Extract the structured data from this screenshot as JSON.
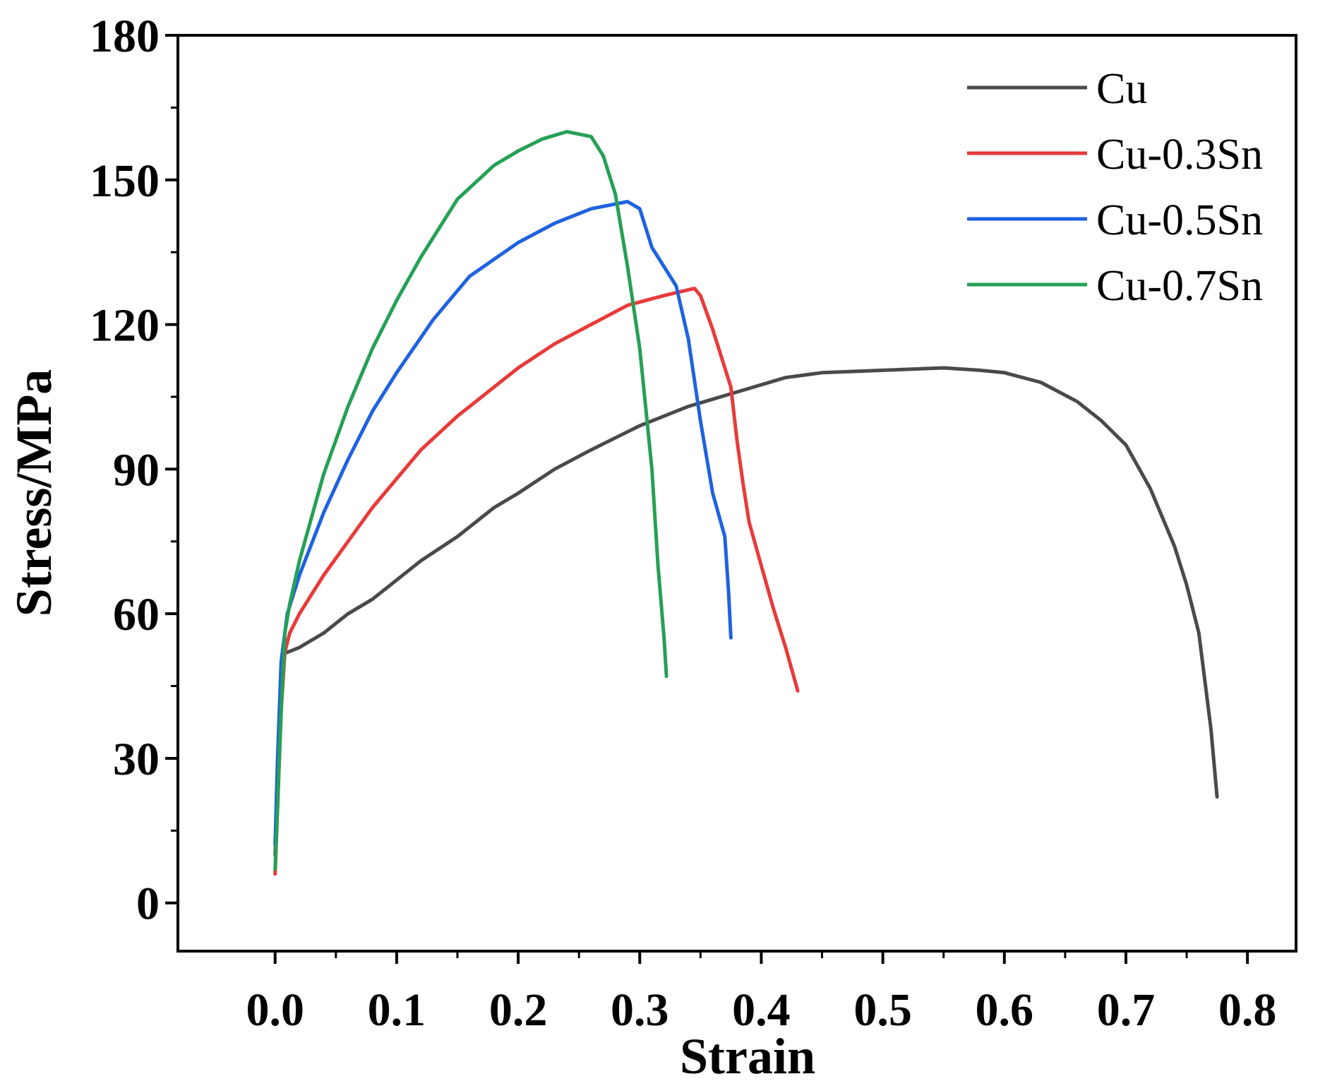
{
  "chart_data": {
    "type": "line",
    "title": "",
    "xlabel": "Strain",
    "ylabel": "Stress/MPa",
    "xlim": [
      -0.08,
      0.84
    ],
    "ylim": [
      -10,
      180
    ],
    "xticks": [
      0.0,
      0.1,
      0.2,
      0.3,
      0.4,
      0.5,
      0.6,
      0.7,
      0.8
    ],
    "xtick_labels": [
      "0.0",
      "0.1",
      "0.2",
      "0.3",
      "0.4",
      "0.5",
      "0.6",
      "0.7",
      "0.8"
    ],
    "yticks": [
      0,
      30,
      60,
      90,
      120,
      150,
      180
    ],
    "ytick_labels": [
      "0",
      "30",
      "60",
      "90",
      "120",
      "150",
      "180"
    ],
    "grid": false,
    "legend_position": "top-right",
    "series": [
      {
        "name": "Cu",
        "color": "#4a4a4a",
        "x": [
          0.0,
          0.002,
          0.004,
          0.006,
          0.008,
          0.01,
          0.02,
          0.04,
          0.06,
          0.08,
          0.1,
          0.12,
          0.15,
          0.18,
          0.2,
          0.23,
          0.26,
          0.3,
          0.34,
          0.38,
          0.42,
          0.45,
          0.5,
          0.55,
          0.58,
          0.6,
          0.63,
          0.66,
          0.68,
          0.7,
          0.72,
          0.74,
          0.75,
          0.76,
          0.77,
          0.775
        ],
        "values": [
          10,
          20,
          35,
          48,
          52,
          52,
          53,
          56,
          60,
          63,
          67,
          71,
          76,
          82,
          85,
          90,
          94,
          99,
          103,
          106,
          109,
          110,
          110.5,
          111,
          110.5,
          110,
          108,
          104,
          100,
          95,
          86,
          74,
          66,
          56,
          36,
          22
        ]
      },
      {
        "name": "Cu-0.3Sn",
        "color": "#e83a3a",
        "x": [
          0.0,
          0.002,
          0.005,
          0.008,
          0.012,
          0.02,
          0.04,
          0.06,
          0.08,
          0.1,
          0.12,
          0.15,
          0.18,
          0.2,
          0.23,
          0.26,
          0.29,
          0.32,
          0.345,
          0.35,
          0.36,
          0.375,
          0.38,
          0.385,
          0.39,
          0.4,
          0.41,
          0.42,
          0.43
        ],
        "values": [
          6,
          20,
          40,
          52,
          56,
          60,
          68,
          75,
          82,
          88,
          94,
          101,
          107,
          111,
          116,
          120,
          124,
          126,
          127.5,
          126,
          119,
          107,
          96,
          87,
          79,
          70,
          61,
          53,
          44
        ]
      },
      {
        "name": "Cu-0.5Sn",
        "color": "#1f62e0",
        "x": [
          0.0,
          0.002,
          0.005,
          0.01,
          0.02,
          0.04,
          0.06,
          0.08,
          0.1,
          0.13,
          0.16,
          0.2,
          0.23,
          0.26,
          0.29,
          0.3,
          0.31,
          0.33,
          0.34,
          0.35,
          0.36,
          0.37,
          0.373,
          0.375
        ],
        "values": [
          12,
          30,
          50,
          60,
          68,
          81,
          92,
          102,
          110,
          121,
          130,
          137,
          141,
          144,
          145.5,
          144,
          136,
          128,
          117,
          100,
          85,
          76,
          65,
          55
        ]
      },
      {
        "name": "Cu-0.7Sn",
        "color": "#25a055",
        "x": [
          0.0,
          0.002,
          0.005,
          0.008,
          0.012,
          0.02,
          0.04,
          0.06,
          0.08,
          0.1,
          0.12,
          0.15,
          0.18,
          0.2,
          0.22,
          0.24,
          0.26,
          0.27,
          0.28,
          0.29,
          0.3,
          0.31,
          0.315,
          0.32,
          0.322
        ],
        "values": [
          7,
          20,
          40,
          56,
          62,
          71,
          89,
          103,
          115,
          125,
          134,
          146,
          153,
          156,
          158.5,
          160,
          159,
          155,
          147,
          132,
          115,
          90,
          70,
          55,
          47
        ]
      }
    ]
  }
}
